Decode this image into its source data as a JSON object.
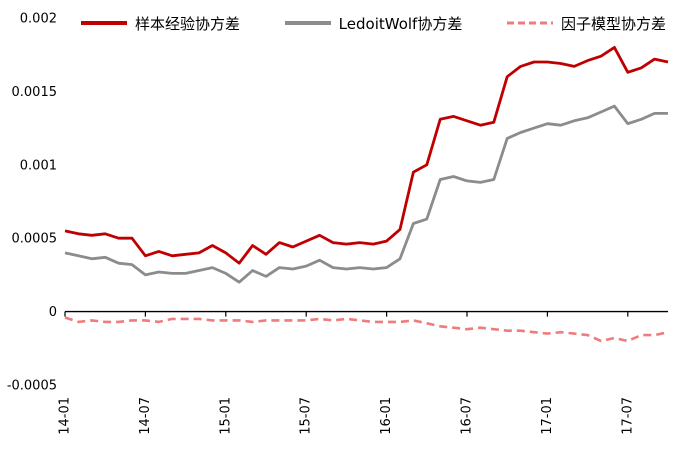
{
  "chart_data": {
    "type": "line",
    "title": "",
    "grid": false,
    "legend_position": "top",
    "background_color": "#ffffff",
    "axis_color": "#000000",
    "ylim": [
      -0.0005,
      0.002
    ],
    "y_ticks": [
      -0.0005,
      0,
      0.0005,
      0.001,
      0.0015,
      0.002
    ],
    "y_tick_labels": [
      "-0.0005",
      "0",
      "0.0005",
      "0.001",
      "0.0015",
      "0.002"
    ],
    "x_start_month": "14-01",
    "x_tick_indices": [
      0,
      6,
      12,
      18,
      24,
      30,
      36,
      42
    ],
    "x_tick_labels": [
      "14-01",
      "14-07",
      "15-01",
      "15-07",
      "16-01",
      "16-07",
      "17-01",
      "17-07"
    ],
    "series": [
      {
        "key": "sample-empirical-covariance",
        "name": "样本经验协方差",
        "color": "#c00000",
        "style": "solid",
        "width": 2.8,
        "values": [
          0.00055,
          0.00053,
          0.00052,
          0.00053,
          0.0005,
          0.0005,
          0.00038,
          0.00041,
          0.00038,
          0.00039,
          0.0004,
          0.00045,
          0.0004,
          0.00033,
          0.00045,
          0.00039,
          0.00047,
          0.00044,
          0.00048,
          0.00052,
          0.00047,
          0.00046,
          0.00047,
          0.00046,
          0.00048,
          0.00056,
          0.00095,
          0.001,
          0.00131,
          0.00133,
          0.0013,
          0.00127,
          0.00129,
          0.0016,
          0.00167,
          0.0017,
          0.0017,
          0.00169,
          0.00167,
          0.00171,
          0.00174,
          0.0018,
          0.00163,
          0.00166,
          0.00172,
          0.0017
        ]
      },
      {
        "key": "ledoitwolf-covariance",
        "name": "LedoitWolf协方差",
        "color": "#8c8c8c",
        "style": "solid",
        "width": 2.8,
        "values": [
          0.0004,
          0.00038,
          0.00036,
          0.00037,
          0.00033,
          0.00032,
          0.00025,
          0.00027,
          0.00026,
          0.00026,
          0.00028,
          0.0003,
          0.00026,
          0.0002,
          0.00028,
          0.00024,
          0.0003,
          0.00029,
          0.00031,
          0.00035,
          0.0003,
          0.00029,
          0.0003,
          0.00029,
          0.0003,
          0.00036,
          0.0006,
          0.00063,
          0.0009,
          0.00092,
          0.00089,
          0.00088,
          0.0009,
          0.00118,
          0.00122,
          0.00125,
          0.00128,
          0.00127,
          0.0013,
          0.00132,
          0.00136,
          0.0014,
          0.00128,
          0.00131,
          0.00135,
          0.00135
        ]
      },
      {
        "key": "factor-model-covariance",
        "name": "因子模型协方差",
        "color": "#ee7c7c",
        "style": "dashed",
        "width": 2.6,
        "values": [
          -4e-05,
          -7e-05,
          -6e-05,
          -7e-05,
          -7e-05,
          -6e-05,
          -6e-05,
          -7e-05,
          -5e-05,
          -5e-05,
          -5e-05,
          -6e-05,
          -6e-05,
          -6e-05,
          -7e-05,
          -6e-05,
          -6e-05,
          -6e-05,
          -6e-05,
          -5e-05,
          -6e-05,
          -5e-05,
          -6e-05,
          -7e-05,
          -7e-05,
          -7e-05,
          -6e-05,
          -8e-05,
          -0.0001,
          -0.00011,
          -0.00012,
          -0.00011,
          -0.00012,
          -0.00013,
          -0.00013,
          -0.00014,
          -0.00015,
          -0.00014,
          -0.00015,
          -0.00016,
          -0.0002,
          -0.00018,
          -0.0002,
          -0.00016,
          -0.00016,
          -0.00014
        ]
      }
    ]
  }
}
